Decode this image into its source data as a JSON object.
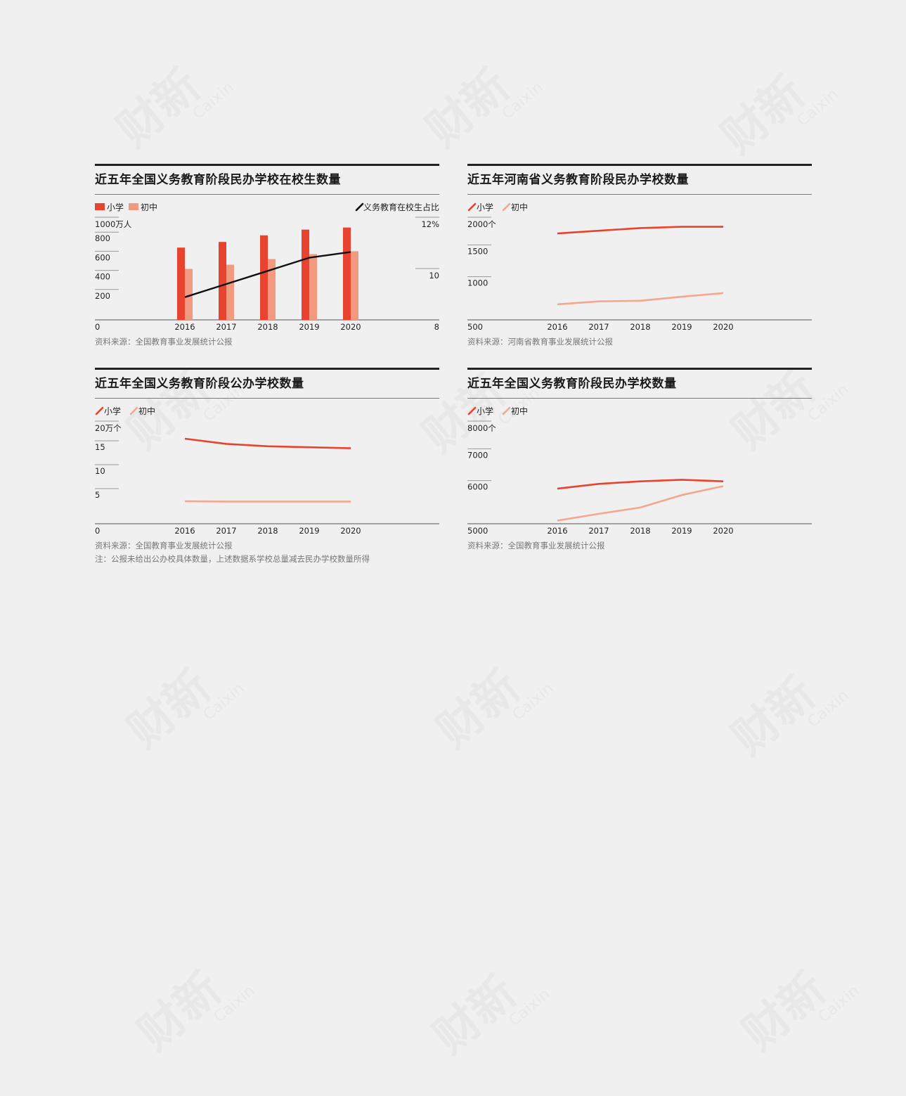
{
  "watermark": {
    "cn": "财新",
    "en": "Caixin"
  },
  "charts": [
    {
      "title": "近五年全国义务教育阶段民办学校在校生数量",
      "source": "资料来源：全国教育事业发展统计公报",
      "note": "",
      "legend": {
        "primary": "小学",
        "secondary": "初中",
        "line": "义务教育在校生占比"
      },
      "left_unit_label": "1000万人",
      "left_ticks": [
        "800",
        "600",
        "400",
        "200",
        "0"
      ],
      "right_ticks": [
        "12%",
        "10",
        "8"
      ],
      "colors": {
        "primary": "#e8432e",
        "secondary": "#f29a80",
        "line": "#111111",
        "axis": "#555555"
      }
    },
    {
      "title": "近五年河南省义务教育阶段民办学校数量",
      "source": "资料来源：河南省教育事业发展统计公报",
      "note": "",
      "legend": {
        "primary": "小学",
        "secondary": "初中"
      },
      "left_unit_label": "2000个",
      "left_ticks": [
        "1500",
        "1000",
        "500"
      ],
      "colors": {
        "primary": "#e8432e",
        "secondary": "#f4a68e",
        "axis": "#555555"
      }
    },
    {
      "title": "近五年全国义务教育阶段公办学校数量",
      "source": "资料来源：全国教育事业发展统计公报",
      "note": "注：公报未给出公办校具体数量，上述数据系学校总量减去民办学校数量所得",
      "legend": {
        "primary": "小学",
        "secondary": "初中"
      },
      "left_unit_label": "20万个",
      "left_ticks": [
        "15",
        "10",
        "5",
        "0"
      ],
      "colors": {
        "primary": "#e8432e",
        "secondary": "#f4a68e",
        "axis": "#555555"
      }
    },
    {
      "title": "近五年全国义务教育阶段民办学校数量",
      "source": "资料来源：全国教育事业发展统计公报",
      "note": "",
      "legend": {
        "primary": "小学",
        "secondary": "初中"
      },
      "left_unit_label": "8000个",
      "left_ticks": [
        "7000",
        "6000",
        "5000"
      ],
      "colors": {
        "primary": "#e8432e",
        "secondary": "#f4a68e",
        "axis": "#555555"
      }
    }
  ],
  "chart_data": [
    {
      "type": "bar",
      "categories": [
        "2016",
        "2017",
        "2018",
        "2019",
        "2020"
      ],
      "ylim": [
        0,
        1000
      ],
      "y2lim": [
        8,
        12
      ],
      "series": [
        {
          "name": "小学",
          "kind": "bar",
          "values": [
            756,
            815,
            884,
            944,
            966
          ]
        },
        {
          "name": "初中",
          "kind": "bar",
          "values": [
            533,
            577,
            636,
            688,
            718
          ]
        },
        {
          "name": "义务教育在校生占比",
          "kind": "line",
          "axis": "right",
          "values": [
            8.95,
            9.5,
            10.05,
            10.6,
            10.84
          ]
        }
      ]
    },
    {
      "type": "line",
      "categories": [
        "2016",
        "2017",
        "2018",
        "2019",
        "2020"
      ],
      "ylim": [
        500,
        2000
      ],
      "series": [
        {
          "name": "小学",
          "values": [
            1855,
            1898,
            1940,
            1960,
            1960
          ]
        },
        {
          "name": "初中",
          "values": [
            744,
            790,
            800,
            863,
            920
          ]
        }
      ]
    },
    {
      "type": "line",
      "categories": [
        "2016",
        "2017",
        "2018",
        "2019",
        "2020"
      ],
      "ylim": [
        0,
        20
      ],
      "series": [
        {
          "name": "小学",
          "values": [
            17.8,
            16.7,
            16.2,
            16.0,
            15.8
          ]
        },
        {
          "name": "初中",
          "values": [
            4.7,
            4.65,
            4.65,
            4.65,
            4.65
          ]
        }
      ]
    },
    {
      "type": "line",
      "categories": [
        "2016",
        "2017",
        "2018",
        "2019",
        "2020"
      ],
      "ylim": [
        5000,
        8000
      ],
      "series": [
        {
          "name": "小学",
          "values": [
            6100,
            6250,
            6330,
            6380,
            6330
          ]
        },
        {
          "name": "初中",
          "values": [
            5100,
            5310,
            5510,
            5900,
            6180
          ]
        }
      ]
    }
  ]
}
